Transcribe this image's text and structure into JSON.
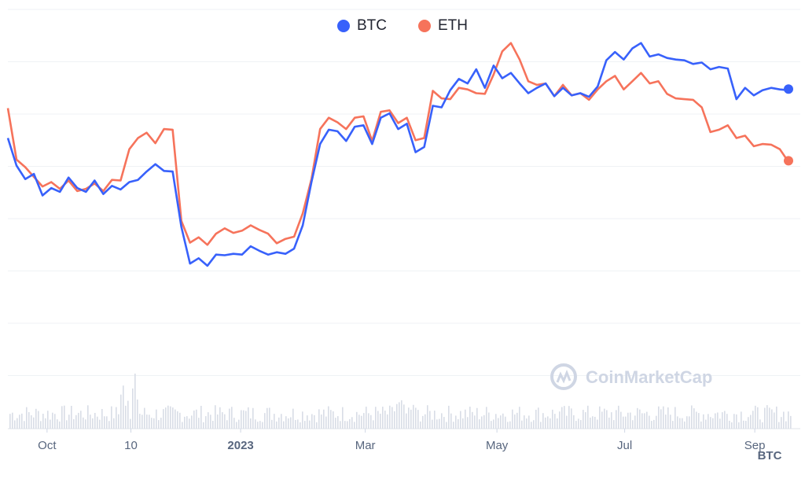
{
  "legend": {
    "btc_label": "BTC",
    "eth_label": "ETH"
  },
  "watermark": "CoinMarketCap",
  "x_unit": "BTC",
  "colors": {
    "btc": "#3861fb",
    "eth": "#f6735b",
    "grid": "#eff2f5",
    "volume": "#d8dde6",
    "tick": "#58667e"
  },
  "chart_data": {
    "type": "line",
    "x_ticks": [
      {
        "label": "Oct",
        "bold": false,
        "t": 0.05
      },
      {
        "label": "10",
        "bold": false,
        "t": 0.157
      },
      {
        "label": "2023",
        "bold": true,
        "t": 0.297
      },
      {
        "label": "Mar",
        "bold": false,
        "t": 0.456
      },
      {
        "label": "May",
        "bold": false,
        "t": 0.624
      },
      {
        "label": "Jul",
        "bold": false,
        "t": 0.787
      },
      {
        "label": "Sep",
        "bold": false,
        "t": 0.953
      }
    ],
    "y_gridlines": 7,
    "y_range": [
      0,
      100
    ],
    "grid": true,
    "legend_position": "top-center",
    "series": [
      {
        "name": "BTC",
        "values": [
          70,
          60,
          56,
          58,
          50,
          53,
          52,
          56,
          53,
          52,
          55,
          51,
          54,
          52,
          55,
          56,
          58,
          61,
          59,
          58,
          40,
          28,
          29,
          27,
          31,
          30,
          31,
          31,
          33,
          32,
          31,
          31,
          31,
          33,
          40,
          55,
          68,
          72,
          72,
          69,
          73,
          74,
          68,
          76,
          78,
          73,
          74,
          65,
          67,
          80,
          80,
          86,
          89,
          88,
          93,
          86,
          94,
          90,
          91,
          88,
          85,
          86,
          88,
          84,
          86,
          84,
          85,
          83,
          87,
          96,
          98,
          96,
          100,
          101,
          97,
          98,
          96,
          96,
          96,
          94,
          95,
          93,
          93,
          93,
          83,
          86,
          84,
          86,
          86,
          86,
          86
        ],
        "sampled_note": ""
      },
      {
        "name": "ETH",
        "values": [
          80,
          62,
          60,
          57,
          53,
          55,
          53,
          55,
          52,
          53,
          54,
          52,
          56,
          55,
          66,
          70,
          71,
          68,
          73,
          72,
          42,
          35,
          36,
          34,
          38,
          39,
          38,
          39,
          40,
          39,
          38,
          34,
          36,
          37,
          44,
          56,
          73,
          76,
          75,
          73,
          76,
          77,
          69,
          78,
          79,
          75,
          76,
          69,
          70,
          85,
          83,
          83,
          86,
          86,
          85,
          84,
          91,
          99,
          101,
          96,
          89,
          87,
          88,
          84,
          87,
          84,
          85,
          82,
          86,
          89,
          90,
          86,
          89,
          91,
          88,
          89,
          84,
          83,
          83,
          82,
          80,
          72,
          72,
          74,
          70,
          70,
          67,
          68,
          67,
          66,
          62
        ]
      }
    ]
  }
}
